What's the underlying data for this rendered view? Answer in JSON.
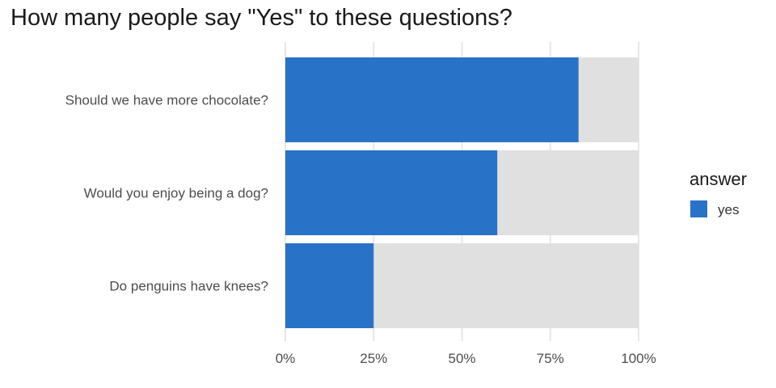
{
  "chart_data": {
    "type": "bar",
    "orientation": "horizontal",
    "stacked_fill": true,
    "title": "How many people say \"Yes\" to these questions?",
    "xlabel": "",
    "ylabel": "",
    "categories": [
      "Should we have more chocolate?",
      "Would you enjoy being a dog?",
      "Do penguins have knees?"
    ],
    "series": [
      {
        "name": "yes",
        "values": [
          0.83,
          0.6,
          0.25
        ],
        "color": "#2872c7"
      }
    ],
    "background_bar_color": "#e0e0e0",
    "xlim": [
      0,
      1
    ],
    "x_ticks": [
      0,
      0.25,
      0.5,
      0.75,
      1
    ],
    "x_tick_labels": [
      "0%",
      "25%",
      "50%",
      "75%",
      "100%"
    ],
    "grid": true,
    "grid_color": "#e6e6e6",
    "legend": {
      "title": "answer",
      "position": "right",
      "entries": [
        "yes"
      ]
    }
  }
}
